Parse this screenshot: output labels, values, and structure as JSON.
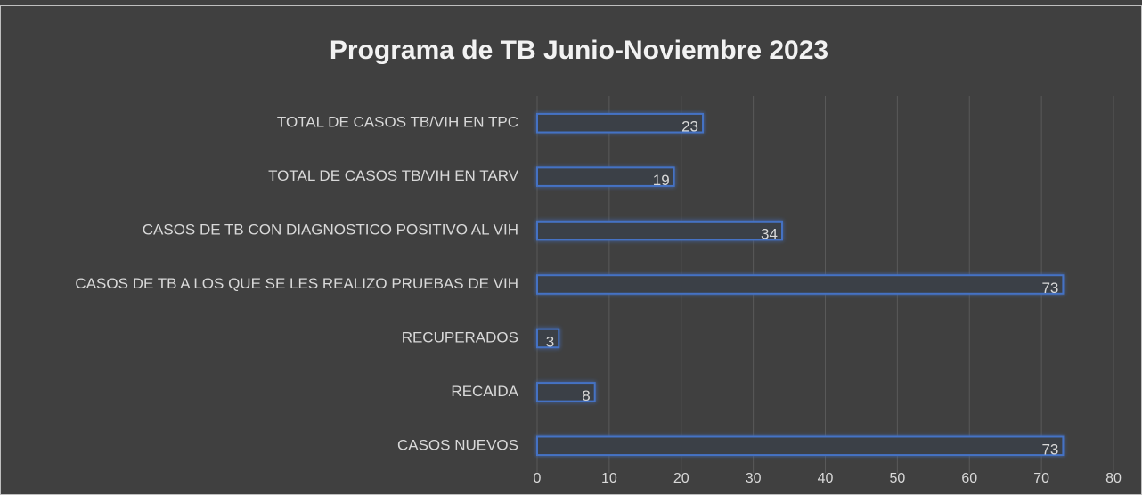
{
  "chart_data": {
    "type": "bar",
    "orientation": "horizontal",
    "title": "Programa de TB Junio-Noviembre 2023",
    "categories": [
      "TOTAL DE CASOS TB/VIH EN TPC",
      "TOTAL DE CASOS TB/VIH EN TARV",
      "CASOS DE TB CON DIAGNOSTICO POSITIVO AL VIH",
      "CASOS DE TB A LOS QUE SE LES REALIZO PRUEBAS DE VIH",
      "RECUPERADOS",
      "RECAIDA",
      "CASOS NUEVOS"
    ],
    "values": [
      23,
      19,
      34,
      73,
      3,
      8,
      73
    ],
    "color": "#4472c4",
    "xlim": [
      0,
      80
    ],
    "xticks": [
      0,
      10,
      20,
      30,
      40,
      50,
      60,
      70,
      80
    ],
    "grid": true
  }
}
